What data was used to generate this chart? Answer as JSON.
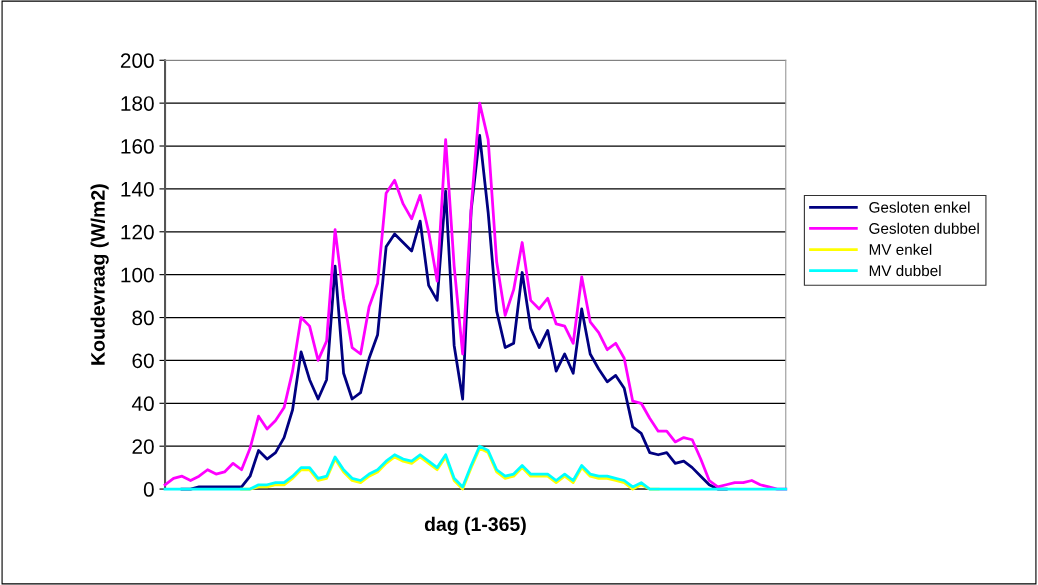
{
  "chart_data": {
    "type": "line",
    "xlabel": "dag (1-365)",
    "ylabel": "Koudevraag (W/m2)",
    "categories": [
      null,
      null,
      null,
      null,
      null,
      null,
      null,
      null,
      null,
      null,
      null,
      null,
      null,
      null,
      null,
      null,
      null,
      null,
      null,
      null,
      null,
      null,
      null,
      null,
      null,
      null,
      null,
      null,
      null,
      null,
      null,
      null,
      null,
      null,
      null,
      null,
      null,
      null,
      null,
      null,
      null,
      null,
      null,
      null,
      null,
      null,
      null,
      null,
      null,
      null,
      null,
      null,
      null,
      null,
      null,
      null,
      null,
      null,
      null,
      null,
      null,
      null,
      null,
      null,
      null,
      null,
      null,
      null,
      null,
      null,
      null,
      null,
      null,
      null
    ],
    "ylim": [
      0,
      200
    ],
    "yticks": [
      0,
      20,
      40,
      60,
      80,
      100,
      120,
      140,
      160,
      180,
      200
    ],
    "tick_labels": "y",
    "grid": "y",
    "legend": "right",
    "marker": "none",
    "line_style": "solid",
    "series": [
      {
        "name": "Gesloten enkel",
        "color": "#000080",
        "values": [
          null,
          null,
          0,
          0,
          1,
          1,
          1,
          1,
          1,
          1,
          6,
          18,
          14,
          17,
          24,
          37,
          64,
          51,
          42,
          51,
          104,
          54,
          42,
          45,
          61,
          72,
          113,
          119,
          115,
          111,
          125,
          95,
          88,
          139,
          67,
          42,
          130,
          165,
          129,
          83,
          66,
          68,
          101,
          75,
          66,
          74,
          55,
          63,
          54,
          84,
          63,
          56,
          50,
          53,
          47,
          29,
          26,
          17,
          16,
          17,
          12,
          13,
          10,
          6,
          2,
          0,
          0,
          null,
          null,
          null,
          null,
          null,
          null,
          null
        ]
      },
      {
        "name": "Gesloten dubbel",
        "color": "#ff00ff",
        "values": [
          2,
          5,
          6,
          4,
          6,
          9,
          7,
          8,
          12,
          9,
          19,
          34,
          28,
          32,
          38,
          55,
          80,
          76,
          60,
          69,
          121,
          89,
          66,
          63,
          85,
          96,
          138,
          144,
          133,
          126,
          137,
          120,
          97,
          163,
          104,
          63,
          131,
          180,
          163,
          106,
          81,
          93,
          115,
          88,
          84,
          89,
          77,
          76,
          68,
          99,
          78,
          73,
          65,
          68,
          61,
          41,
          40,
          33,
          27,
          27,
          22,
          24,
          23,
          14,
          4,
          1,
          2,
          3,
          3,
          4,
          2,
          1,
          0,
          0
        ]
      },
      {
        "name": "MV enkel",
        "color": "#ffff00",
        "values": [
          null,
          null,
          null,
          null,
          null,
          null,
          null,
          null,
          null,
          0,
          0,
          1,
          1,
          2,
          2,
          5,
          9,
          9,
          4,
          5,
          14,
          8,
          4,
          3,
          6,
          8,
          12,
          15,
          13,
          12,
          15,
          12,
          9,
          15,
          4,
          0,
          10,
          19,
          17,
          8,
          5,
          6,
          10,
          6,
          6,
          6,
          3,
          6,
          3,
          10,
          6,
          5,
          5,
          4,
          3,
          0,
          2,
          0,
          0,
          null,
          null,
          null,
          null,
          null,
          null,
          null,
          null,
          null,
          null,
          null,
          null,
          null,
          null,
          null
        ]
      },
      {
        "name": "MV dubbel",
        "color": "#00ffff",
        "values": [
          0,
          0,
          0,
          0,
          0,
          0,
          0,
          0,
          0,
          0,
          0,
          2,
          2,
          3,
          3,
          6,
          10,
          10,
          5,
          6,
          15,
          9,
          5,
          4,
          7,
          9,
          13,
          16,
          14,
          13,
          16,
          13,
          10,
          16,
          5,
          1,
          11,
          20,
          18,
          9,
          6,
          7,
          11,
          7,
          7,
          7,
          4,
          7,
          4,
          11,
          7,
          6,
          6,
          5,
          4,
          1,
          3,
          0,
          0,
          0,
          0,
          0,
          0,
          0,
          0,
          0,
          0,
          0,
          0,
          0,
          0,
          0,
          0,
          0
        ]
      }
    ]
  }
}
